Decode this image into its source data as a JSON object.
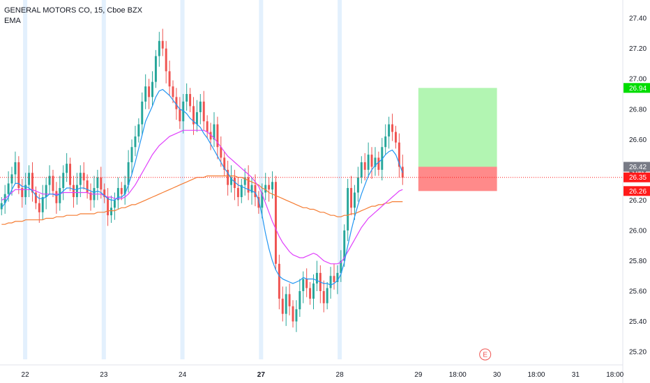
{
  "legend": {
    "symbol": "GENERAL MOTORS CO, 15, Cboe BZX",
    "indicator": "EMA"
  },
  "earnings_marker": "E",
  "colors": {
    "up": "#26a69a",
    "down": "#ef5350",
    "ema_fast": "#2196f3",
    "ema_mid": "#e040fb",
    "ema_slow": "#f57c32",
    "target_zone": "#b2f5b2",
    "stop_zone": "#ff8a8a",
    "price_tag_last": "#ff1a1a",
    "price_tag_entry": "#787b86",
    "price_tag_target": "#00dd00",
    "session_highlight": "#e3f0fd"
  },
  "chart_data": {
    "type": "candlestick",
    "title": "GENERAL MOTORS CO, 15, Cboe BZX",
    "ylim": [
      25.15,
      27.52
    ],
    "y_ticks": [
      "27.40",
      "27.20",
      "27.00",
      "26.80",
      "26.60",
      "26.40",
      "26.20",
      "26.00",
      "25.80",
      "25.60",
      "25.40",
      "25.20"
    ],
    "x_ticks": [
      {
        "label": "22",
        "t": 0.0,
        "bold": false
      },
      {
        "label": "23",
        "t": 1.0,
        "bold": false
      },
      {
        "label": "24",
        "t": 2.0,
        "bold": false
      },
      {
        "label": "27",
        "t": 3.0,
        "bold": true
      },
      {
        "label": "28",
        "t": 4.0,
        "bold": false
      },
      {
        "label": "29",
        "t": 5.0,
        "bold": false
      },
      {
        "label": "18:00",
        "t": 5.5,
        "bold": false
      },
      {
        "label": "30",
        "t": 6.0,
        "bold": false
      },
      {
        "label": "18:00",
        "t": 6.5,
        "bold": false
      },
      {
        "label": "31",
        "t": 7.0,
        "bold": false
      },
      {
        "label": "18:00",
        "t": 7.5,
        "bold": false
      }
    ],
    "xlim": [
      -0.32,
      7.6
    ],
    "day_boundaries": [
      0.0,
      1.0,
      2.0,
      3.0,
      4.0
    ],
    "closes": [
      26.18,
      26.24,
      26.31,
      26.37,
      26.45,
      26.28,
      26.22,
      26.3,
      26.38,
      26.25,
      26.18,
      26.12,
      26.22,
      26.3,
      26.36,
      26.26,
      26.18,
      26.28,
      26.38,
      26.44,
      26.3,
      26.22,
      26.3,
      26.38,
      26.33,
      26.25,
      26.2,
      26.28,
      26.35,
      26.27,
      26.22,
      26.1,
      26.15,
      26.2,
      26.28,
      26.24,
      26.3,
      26.45,
      26.55,
      26.62,
      26.7,
      26.85,
      26.95,
      26.88,
      26.98,
      27.15,
      27.25,
      27.2,
      27.05,
      26.95,
      26.88,
      26.8,
      26.72,
      26.85,
      26.9,
      26.82,
      26.7,
      26.78,
      26.85,
      26.72,
      26.65,
      26.6,
      26.7,
      26.55,
      26.48,
      26.4,
      26.3,
      26.35,
      26.28,
      26.22,
      26.3,
      26.35,
      26.25,
      26.3,
      26.22,
      26.15,
      26.25,
      26.3,
      26.27,
      26.32,
      25.78,
      25.55,
      25.45,
      25.58,
      25.5,
      25.4,
      25.48,
      25.6,
      25.68,
      25.62,
      25.55,
      25.65,
      25.72,
      25.6,
      25.52,
      25.62,
      25.7,
      25.66,
      25.72,
      25.8,
      26.0,
      26.28,
      26.15,
      26.25,
      26.35,
      26.45,
      26.4,
      26.5,
      26.42,
      26.48,
      26.4,
      26.55,
      26.62,
      26.7,
      26.65,
      26.58,
      26.42,
      26.35
    ],
    "ema_fast": [
      26.15,
      26.18,
      26.22,
      26.27,
      26.31,
      26.31,
      26.29,
      26.29,
      26.28,
      26.26,
      26.23,
      26.21,
      26.21,
      26.22,
      26.24,
      26.24,
      26.23,
      26.24,
      26.26,
      26.28,
      26.28,
      26.27,
      26.27,
      26.28,
      26.28,
      26.27,
      26.26,
      26.25,
      26.26,
      26.25,
      26.23,
      26.21,
      26.2,
      26.2,
      26.22,
      26.22,
      26.24,
      26.3,
      26.37,
      26.45,
      26.54,
      26.63,
      26.72,
      26.77,
      26.82,
      26.88,
      26.92,
      26.93,
      26.91,
      26.89,
      26.86,
      26.83,
      26.8,
      26.79,
      26.77,
      26.74,
      26.72,
      26.7,
      26.68,
      26.64,
      26.61,
      26.57,
      26.53,
      26.49,
      26.45,
      26.41,
      26.38,
      26.34,
      26.32,
      26.3,
      26.29,
      26.28,
      26.27,
      26.26,
      26.25,
      26.2,
      26.1,
      25.98,
      25.88,
      25.8,
      25.74,
      25.7,
      25.68,
      25.67,
      25.66,
      25.65,
      25.66,
      25.67,
      25.69,
      25.68,
      25.68,
      25.68,
      25.67,
      25.66,
      25.65,
      25.65,
      25.64,
      25.65,
      25.67,
      25.71,
      25.79,
      25.9,
      26.0,
      26.09,
      26.17,
      26.24,
      26.3,
      26.36,
      26.4,
      26.43,
      26.45,
      26.47,
      26.5,
      26.52,
      26.53,
      26.5,
      26.44,
      26.38
    ],
    "ema_mid": [
      26.2,
      26.21,
      26.23,
      26.25,
      26.27,
      26.27,
      26.27,
      26.27,
      26.27,
      26.27,
      26.26,
      26.25,
      26.24,
      26.24,
      26.24,
      26.24,
      26.24,
      26.24,
      26.25,
      26.25,
      26.25,
      26.25,
      26.25,
      26.25,
      26.25,
      26.25,
      26.24,
      26.24,
      26.24,
      26.24,
      26.23,
      26.22,
      26.22,
      26.21,
      26.21,
      26.21,
      26.22,
      26.24,
      26.27,
      26.3,
      26.34,
      26.38,
      26.42,
      26.46,
      26.5,
      26.53,
      26.56,
      26.58,
      26.6,
      26.62,
      26.63,
      26.64,
      26.65,
      26.66,
      26.66,
      26.66,
      26.66,
      26.66,
      26.66,
      26.66,
      26.65,
      26.63,
      26.61,
      26.58,
      26.55,
      26.52,
      26.49,
      26.47,
      26.45,
      26.43,
      26.41,
      26.39,
      26.37,
      26.35,
      26.32,
      26.29,
      26.24,
      26.18,
      26.12,
      26.06,
      26.01,
      25.96,
      25.92,
      25.89,
      25.86,
      25.84,
      25.83,
      25.82,
      25.82,
      25.83,
      25.84,
      25.85,
      25.84,
      25.82,
      25.8,
      25.79,
      25.78,
      25.78,
      25.78,
      25.79,
      25.82,
      25.86,
      25.9,
      25.94,
      25.98,
      26.02,
      26.05,
      26.08,
      26.1,
      26.12,
      26.14,
      26.16,
      26.18,
      26.2,
      26.22,
      26.24,
      26.26,
      26.27
    ],
    "ema_slow": [
      26.04,
      26.04,
      26.05,
      26.05,
      26.06,
      26.06,
      26.06,
      26.07,
      26.07,
      26.07,
      26.07,
      26.07,
      26.07,
      26.08,
      26.08,
      26.08,
      26.09,
      26.09,
      26.09,
      26.1,
      26.1,
      26.1,
      26.1,
      26.11,
      26.11,
      26.11,
      26.11,
      26.11,
      26.12,
      26.12,
      26.12,
      26.13,
      26.13,
      26.13,
      26.14,
      26.15,
      26.15,
      26.16,
      26.17,
      26.17,
      26.18,
      26.19,
      26.2,
      26.21,
      26.22,
      26.23,
      26.24,
      26.25,
      26.26,
      26.27,
      26.28,
      26.29,
      26.3,
      26.31,
      26.32,
      26.33,
      26.34,
      26.35,
      26.35,
      26.35,
      26.36,
      26.36,
      26.36,
      26.36,
      26.36,
      26.36,
      26.36,
      26.36,
      26.36,
      26.35,
      26.35,
      26.34,
      26.33,
      26.32,
      26.31,
      26.3,
      26.28,
      26.27,
      26.25,
      26.24,
      26.23,
      26.22,
      26.21,
      26.2,
      26.19,
      26.18,
      26.17,
      26.16,
      26.15,
      26.15,
      26.14,
      26.14,
      26.13,
      26.12,
      26.12,
      26.11,
      26.1,
      26.1,
      26.09,
      26.09,
      26.1,
      26.1,
      26.11,
      26.11,
      26.12,
      26.13,
      26.14,
      26.15,
      26.16,
      26.16,
      26.17,
      26.17,
      26.18,
      26.18,
      26.19,
      26.19,
      26.19,
      26.19
    ],
    "position": {
      "target": 26.94,
      "entry": 26.42,
      "stop": 26.26,
      "last": 26.35,
      "x_start": 5.0,
      "x_end": 6.0
    },
    "price_labels": {
      "target": "26.94",
      "entry": "26.42",
      "last": "26.35",
      "stop": "26.26"
    },
    "grid": false
  }
}
